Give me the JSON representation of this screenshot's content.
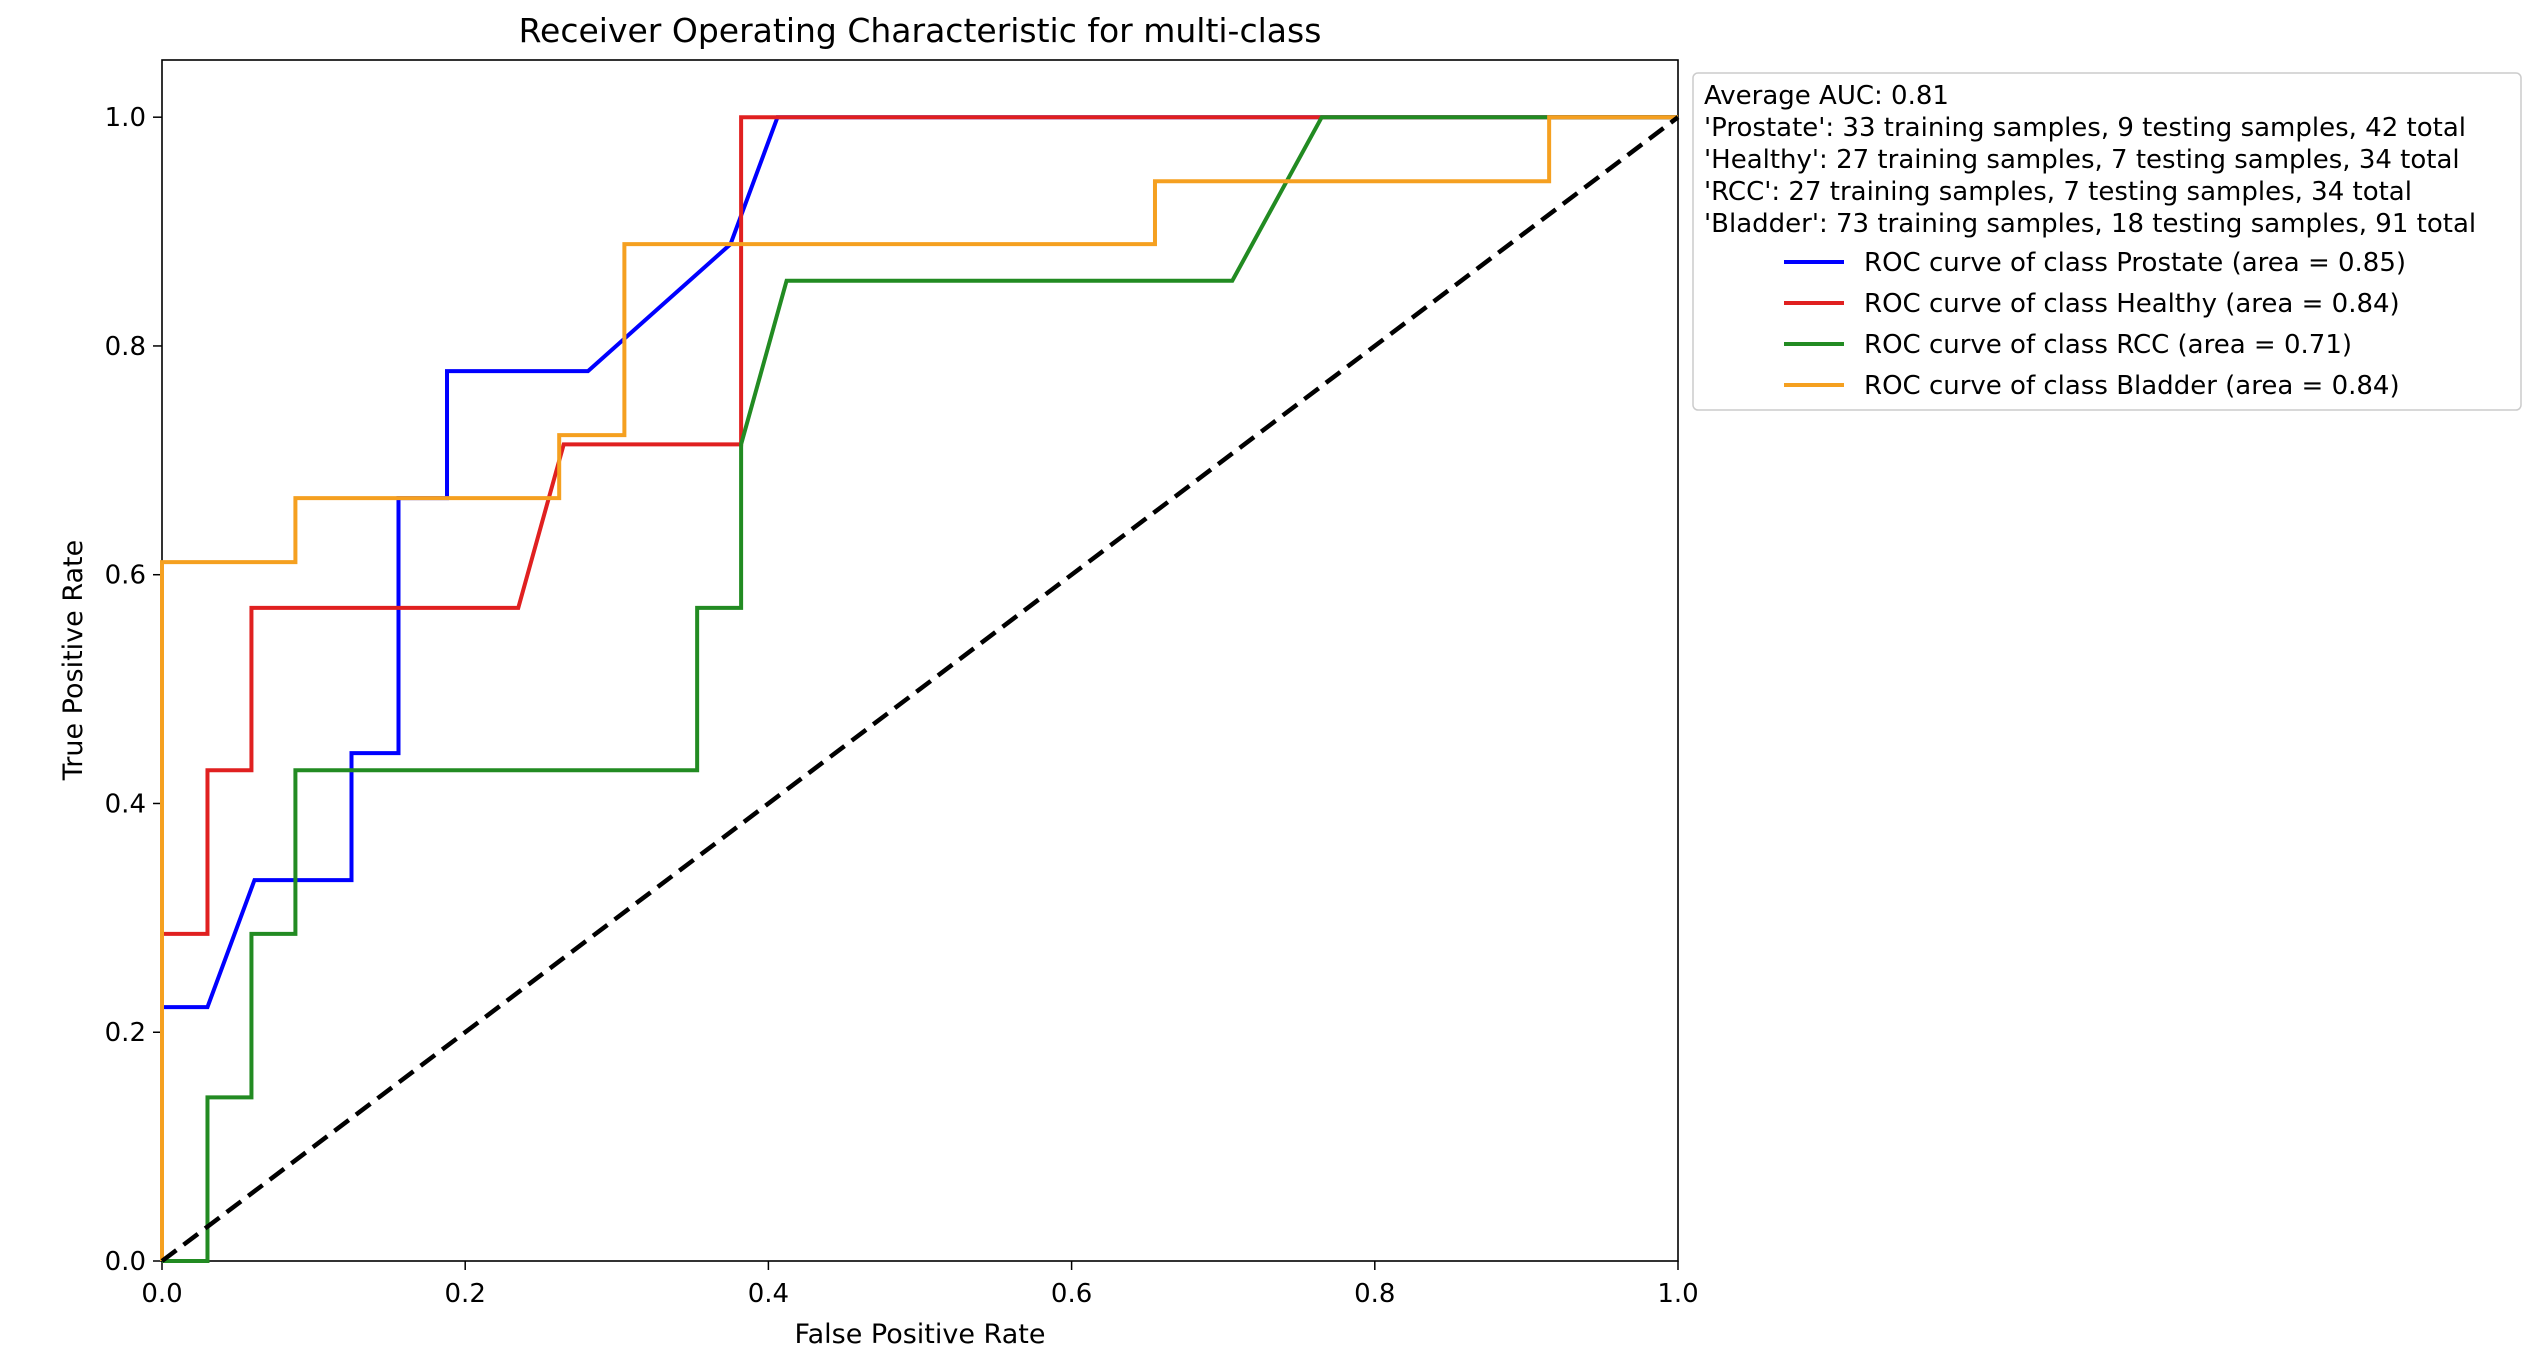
{
  "chart_data": {
    "type": "line",
    "title": "Receiver Operating Characteristic for multi-class",
    "xlabel": "False Positive Rate",
    "ylabel": "True Positive Rate",
    "xlim": [
      0.0,
      1.0
    ],
    "ylim": [
      0.0,
      1.05
    ],
    "xticks": [
      "0.0",
      "0.2",
      "0.4",
      "0.6",
      "0.8",
      "1.0"
    ],
    "yticks": [
      "0.0",
      "0.2",
      "0.4",
      "0.6",
      "0.8",
      "1.0"
    ],
    "grid": false,
    "legend_position": "outside-upper-right",
    "legend_header": [
      "Average AUC: 0.81",
      "'Prostate': 33 training samples, 9 testing samples, 42 total",
      "'Healthy': 27 training samples, 7 testing samples, 34 total",
      "'RCC': 27 training samples, 7 testing samples, 34 total",
      "'Bladder': 73 training samples, 18 testing samples, 91 total"
    ],
    "diagonal": {
      "color": "#000000",
      "style": "dashed",
      "points": [
        [
          0,
          0
        ],
        [
          1,
          1
        ]
      ]
    },
    "series": [
      {
        "name": "ROC curve of class Prostate (area = 0.85)",
        "color": "#0000ff",
        "points": [
          [
            0,
            0
          ],
          [
            0,
            0.222
          ],
          [
            0.03,
            0.222
          ],
          [
            0.061,
            0.333
          ],
          [
            0.125,
            0.333
          ],
          [
            0.125,
            0.444
          ],
          [
            0.156,
            0.444
          ],
          [
            0.156,
            0.667
          ],
          [
            0.188,
            0.667
          ],
          [
            0.188,
            0.778
          ],
          [
            0.281,
            0.778
          ],
          [
            0.375,
            0.889
          ],
          [
            0.406,
            1.0
          ],
          [
            1.0,
            1.0
          ]
        ]
      },
      {
        "name": "ROC curve of class Healthy (area = 0.84)",
        "color": "#e02020",
        "points": [
          [
            0,
            0
          ],
          [
            0,
            0.286
          ],
          [
            0.03,
            0.286
          ],
          [
            0.03,
            0.429
          ],
          [
            0.059,
            0.429
          ],
          [
            0.059,
            0.571
          ],
          [
            0.235,
            0.571
          ],
          [
            0.265,
            0.714
          ],
          [
            0.382,
            0.714
          ],
          [
            0.382,
            1.0
          ],
          [
            1.0,
            1.0
          ]
        ]
      },
      {
        "name": "ROC curve of class RCC (area = 0.71)",
        "color": "#228b22",
        "points": [
          [
            0,
            0
          ],
          [
            0.03,
            0
          ],
          [
            0.03,
            0.143
          ],
          [
            0.059,
            0.143
          ],
          [
            0.059,
            0.286
          ],
          [
            0.088,
            0.286
          ],
          [
            0.088,
            0.429
          ],
          [
            0.353,
            0.429
          ],
          [
            0.353,
            0.571
          ],
          [
            0.382,
            0.571
          ],
          [
            0.382,
            0.714
          ],
          [
            0.412,
            0.857
          ],
          [
            0.706,
            0.857
          ],
          [
            0.765,
            1.0
          ],
          [
            1.0,
            1.0
          ]
        ]
      },
      {
        "name": "ROC curve of class Bladder (area = 0.84)",
        "color": "#f5a020",
        "points": [
          [
            0,
            0
          ],
          [
            0,
            0.611
          ],
          [
            0.088,
            0.611
          ],
          [
            0.088,
            0.667
          ],
          [
            0.262,
            0.667
          ],
          [
            0.262,
            0.722
          ],
          [
            0.305,
            0.722
          ],
          [
            0.305,
            0.889
          ],
          [
            0.655,
            0.889
          ],
          [
            0.655,
            0.944
          ],
          [
            0.915,
            0.944
          ],
          [
            0.915,
            1.0
          ],
          [
            1.0,
            1.0
          ]
        ]
      }
    ]
  }
}
